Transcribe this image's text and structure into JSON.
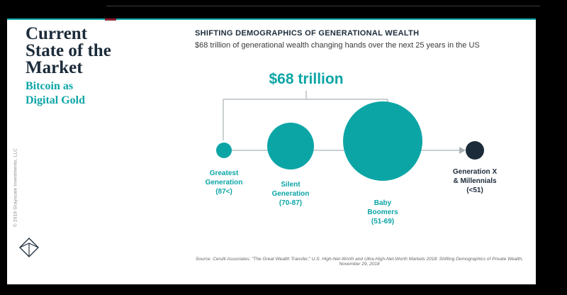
{
  "colors": {
    "teal": "#0CA5A6",
    "navy": "#1C2B3A",
    "red": "#8E2030",
    "line": "#A9B2B6",
    "source": "#666666"
  },
  "left_panel": {
    "title_lines": [
      "Current",
      "State of the",
      "Market"
    ],
    "subtitle_lines": [
      "Bitcoin as",
      "Digital Gold"
    ],
    "copyright": "© 2019 Grayscale Investments, LLC"
  },
  "content": {
    "heading": "SHIFTING DEMOGRAPHICS OF GENERATIONAL WEALTH",
    "subheading": "$68 trillion of generational wealth changing hands over the next 25 years in the US",
    "source": "Source: Cerulli Associates; \"The Great Wealth Transfer,\" U.S. High-Net-Worth and Ultra-High-Net-Worth Markets 2018: Shifting Demographics of Private Wealth, November 29, 2018"
  },
  "chart_data": {
    "type": "bubble",
    "title": "$68 trillion",
    "categories": [
      "Greatest Generation (87<)",
      "Silent Generation (70-87)",
      "Baby Boomers (51-69)",
      "Generation X & Millennials (<51)"
    ],
    "bubbles": [
      {
        "lines": [
          "Greatest",
          "Generation",
          "(87<)"
        ],
        "r": 11,
        "color": "#0CA5A6"
      },
      {
        "lines": [
          "Silent",
          "Generation",
          "(70-87)"
        ],
        "r": 33,
        "color": "#0CA5A6"
      },
      {
        "lines": [
          "Baby",
          "Boomers",
          "(51-69)"
        ],
        "r": 56,
        "color": "#0CA5A6"
      },
      {
        "lines": [
          "Generation X",
          "& Millennials",
          "(<51)"
        ],
        "r": 13,
        "color": "#1C2B3A"
      }
    ],
    "flow": {
      "amount": "$68 trillion",
      "from": [
        "Greatest Generation (87<)",
        "Silent Generation (70-87)",
        "Baby Boomers (51-69)"
      ],
      "to": "Generation X & Millennials (<51)",
      "direction": "right-arrow"
    },
    "legend_position": "none",
    "grid": false
  }
}
